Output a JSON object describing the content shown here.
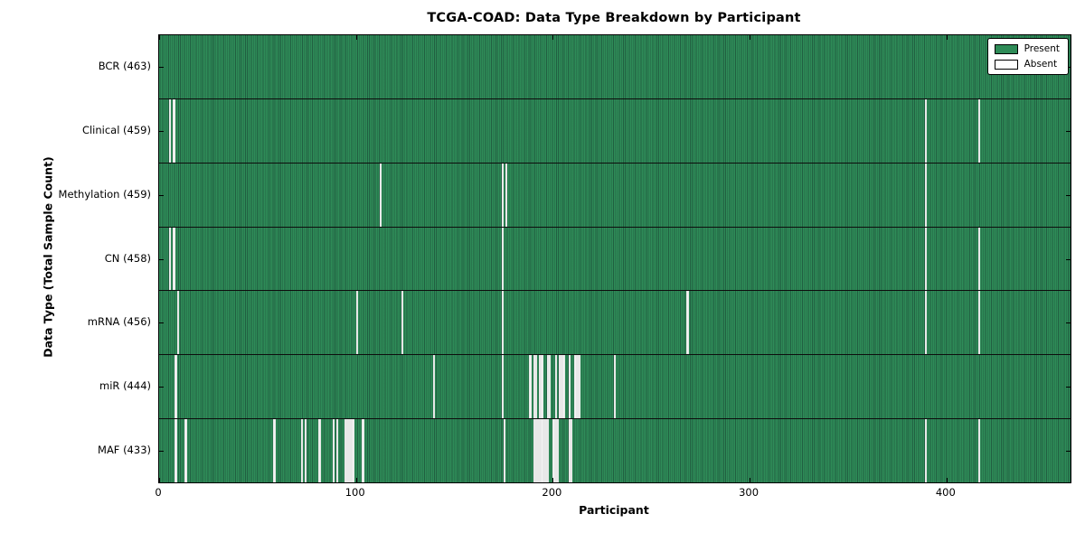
{
  "title": "TCGA-COAD: Data Type Breakdown by Participant",
  "chart_data": {
    "type": "heatmap",
    "title": "TCGA-COAD: Data Type Breakdown by Participant",
    "xlabel": "Participant",
    "ylabel": "Data Type (Total Sample Count)",
    "x_ticks": [
      0,
      100,
      200,
      300,
      400
    ],
    "xlim": [
      0,
      463
    ],
    "n_participants": 463,
    "grid": false,
    "legend_position": "upper right",
    "legend": [
      {
        "label": "Present",
        "color": "#2e8b57"
      },
      {
        "label": "Absent",
        "color": "#ffffff"
      }
    ],
    "colors": {
      "present": "#2e8b57",
      "absent": "#f4f4f4",
      "cell_edge": "#215f41",
      "row_separator": "#0d0d0d"
    },
    "rows": [
      {
        "label": "BCR (463)",
        "data_type": "BCR",
        "present_count": 463,
        "absent_participants": []
      },
      {
        "label": "Clinical (459)",
        "data_type": "Clinical",
        "present_count": 459,
        "absent_participants": [
          5,
          7,
          389,
          416
        ]
      },
      {
        "label": "Methylation (459)",
        "data_type": "Methylation",
        "present_count": 459,
        "absent_participants": [
          112,
          174,
          176,
          389
        ]
      },
      {
        "label": "CN (458)",
        "data_type": "CN",
        "present_count": 458,
        "absent_participants": [
          5,
          7,
          174,
          389,
          416
        ]
      },
      {
        "label": "mRNA (456)",
        "data_type": "mRNA",
        "present_count": 456,
        "absent_participants": [
          9,
          100,
          123,
          174,
          268,
          389,
          416
        ]
      },
      {
        "label": "miR (444)",
        "data_type": "miR",
        "present_count": 444,
        "absent_participants": [
          8,
          139,
          174,
          188,
          190,
          191,
          193,
          194,
          197,
          198,
          201,
          203,
          204,
          205,
          208,
          211,
          212,
          213,
          231
        ]
      },
      {
        "label": "MAF (433)",
        "data_type": "MAF",
        "present_count": 433,
        "absent_participants": [
          8,
          13,
          58,
          72,
          74,
          81,
          88,
          90,
          94,
          95,
          96,
          97,
          98,
          103,
          175,
          190,
          191,
          192,
          193,
          194,
          195,
          196,
          197,
          200,
          201,
          202,
          208,
          209,
          389,
          416
        ]
      }
    ]
  }
}
